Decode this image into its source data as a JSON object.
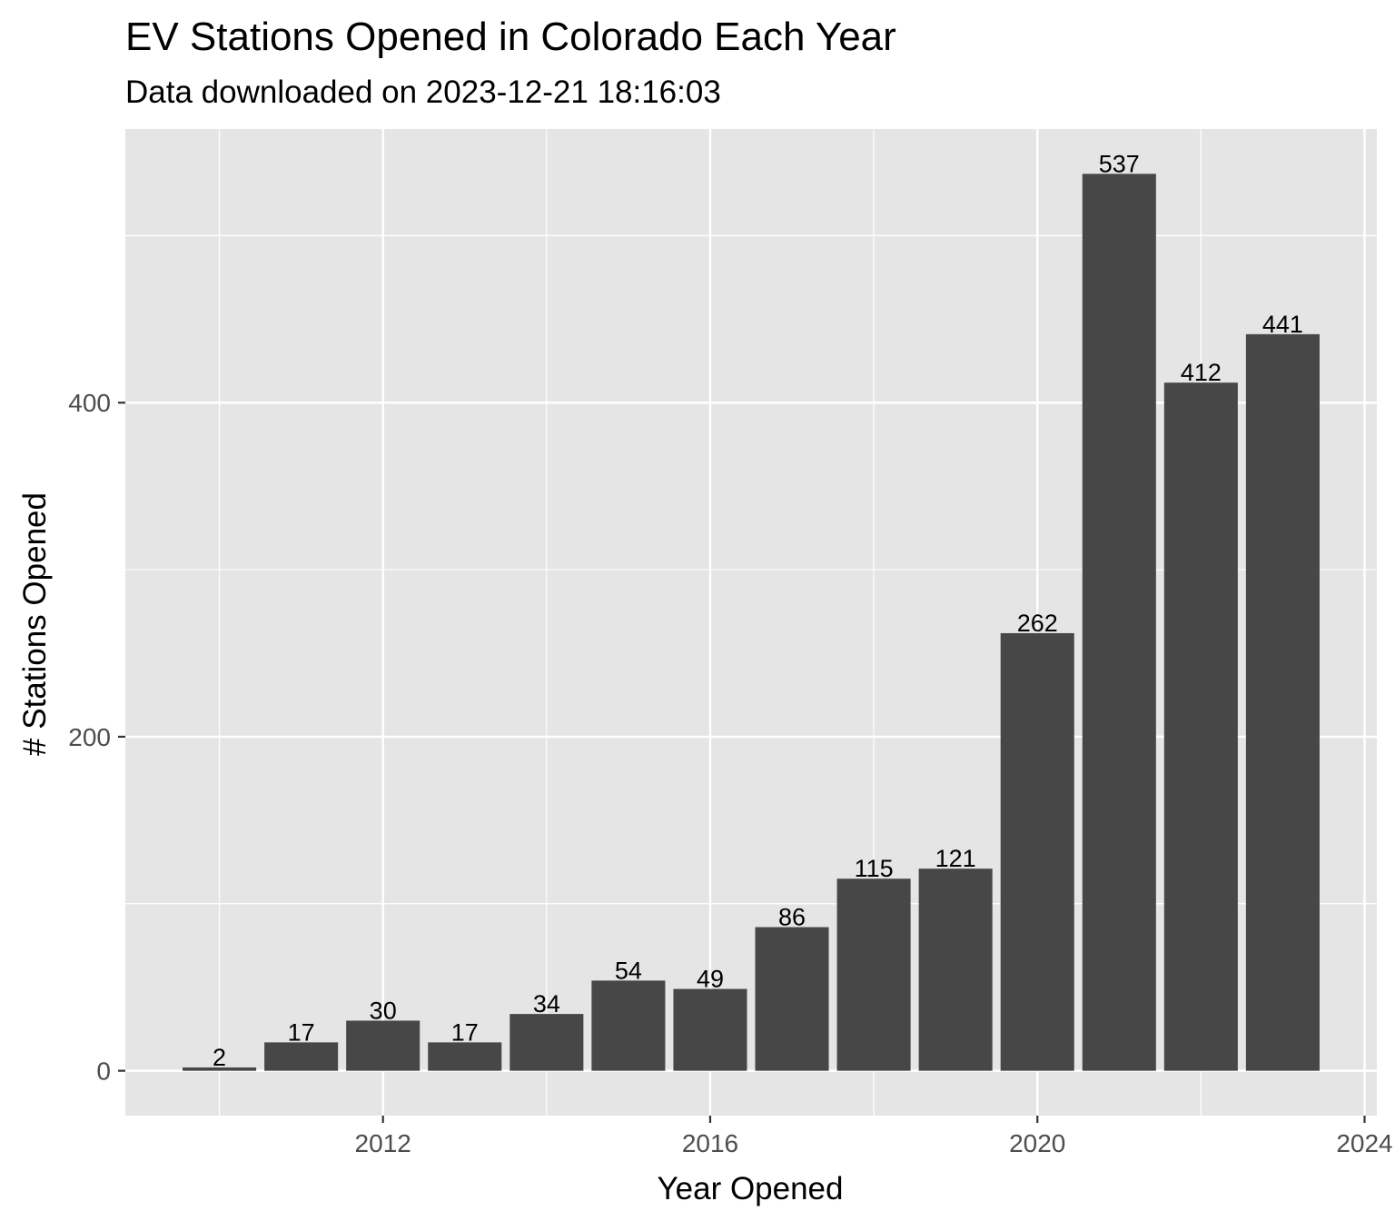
{
  "chart_data": {
    "type": "bar",
    "title": "EV Stations Opened in Colorado Each Year",
    "subtitle": "Data downloaded on 2023-12-21 18:16:03",
    "xlabel": "Year Opened",
    "ylabel": "# Stations Opened",
    "x": [
      2010,
      2011,
      2012,
      2013,
      2014,
      2015,
      2016,
      2017,
      2018,
      2019,
      2020,
      2021,
      2022,
      2023
    ],
    "values": [
      2,
      17,
      30,
      17,
      34,
      54,
      49,
      86,
      115,
      121,
      262,
      537,
      412,
      441
    ],
    "data_labels": [
      "2",
      "17",
      "30",
      "17",
      "34",
      "54",
      "49",
      "86",
      "115",
      "121",
      "262",
      "537",
      "412",
      "441"
    ],
    "xlim": [
      2008.85,
      2024.15
    ],
    "ylim": [
      -26.85,
      563.85
    ],
    "xticks": [
      2012,
      2016,
      2020,
      2024
    ],
    "xtick_labels": [
      "2012",
      "2016",
      "2020",
      "2024"
    ],
    "yticks": [
      0,
      200,
      400
    ],
    "ytick_labels": [
      "0",
      "200",
      "400"
    ],
    "grid": true,
    "colors": {
      "bar": "#474747",
      "panel_background": "#e5e5e5",
      "grid_line": "#ffffff",
      "tick_label": "#4d4d4d",
      "text": "#000000"
    }
  }
}
